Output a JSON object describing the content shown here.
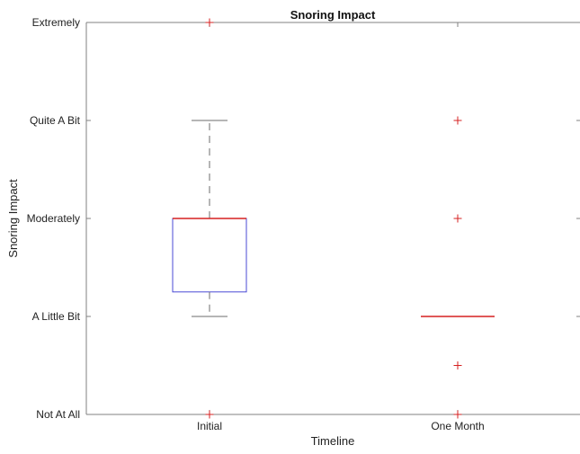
{
  "chart_data": {
    "type": "boxplot",
    "title": "Snoring Impact",
    "xlabel": "Timeline",
    "ylabel": "Snoring Impact",
    "categories": [
      "Initial",
      "One Month"
    ],
    "y_ticks": [
      {
        "value": 0,
        "label": "Not At All"
      },
      {
        "value": 1,
        "label": "A Little Bit"
      },
      {
        "value": 2,
        "label": "Moderately"
      },
      {
        "value": 3,
        "label": "Quite A Bit"
      },
      {
        "value": 4,
        "label": "Extremely"
      }
    ],
    "ylim": [
      0,
      4
    ],
    "boxes": [
      {
        "category": "Initial",
        "q1": 1.25,
        "median": 2,
        "q3": 2,
        "whisker_low": 1,
        "whisker_high": 3,
        "outliers": [
          4,
          0
        ]
      },
      {
        "category": "One Month",
        "q1": 1,
        "median": 1,
        "q3": 1,
        "whisker_low": 1,
        "whisker_high": 1,
        "outliers": [
          3,
          2,
          0.5,
          0
        ]
      }
    ],
    "colors": {
      "box": "#4a4ad6",
      "median": "#d62020",
      "whisker": "#6e6e6e",
      "outlier": "#d62020",
      "axis": "#808080",
      "text": "#222222"
    }
  }
}
